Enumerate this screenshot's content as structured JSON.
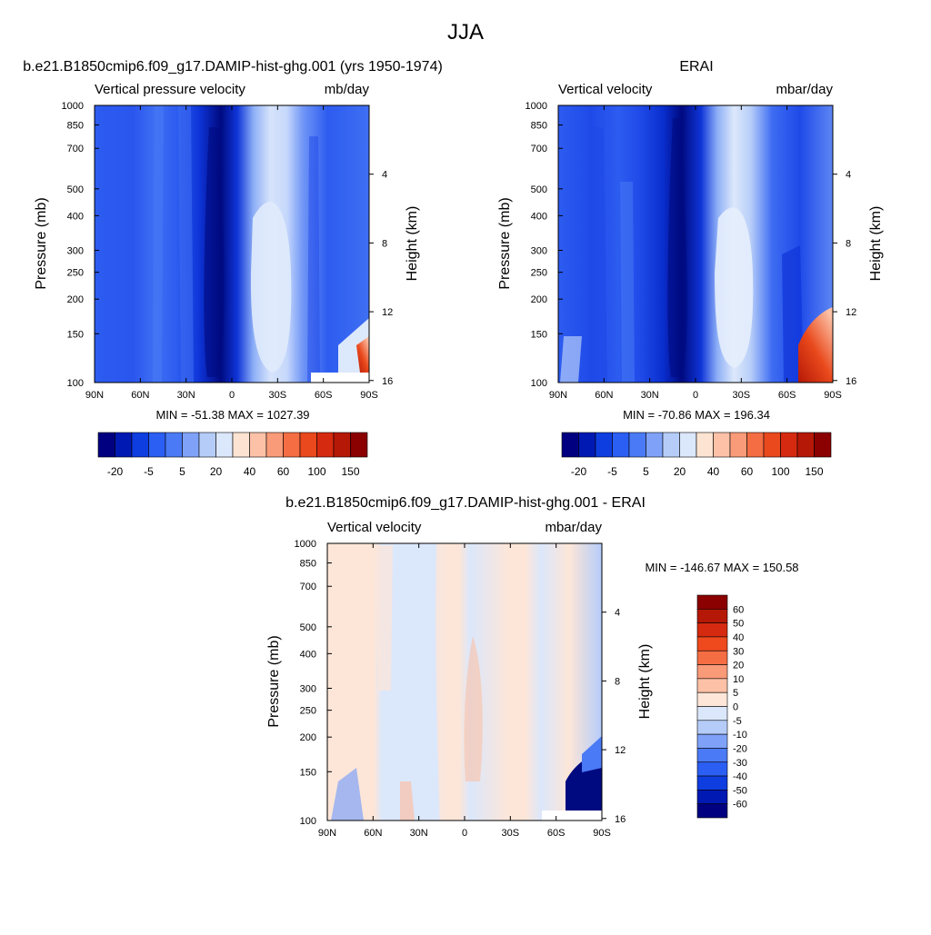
{
  "figure": {
    "title": "JJA"
  },
  "chart_data": [
    {
      "type": "heatmap",
      "title": "b.e21.B1850cmip6.f09_g17.DAMIP-hist-ghg.001 (yrs 1950-1974)",
      "left_label": "Vertical pressure velocity",
      "right_label": "mb/day",
      "ylabel": "Pressure (mb)",
      "ylabel_right": "Height (km)",
      "x_ticks": [
        "90N",
        "60N",
        "30N",
        "0",
        "30S",
        "60S",
        "90S"
      ],
      "y_ticks": [
        "100",
        "150",
        "200",
        "250",
        "300",
        "400",
        "500",
        "700",
        "850",
        "1000"
      ],
      "y_ticks_right": [
        "16",
        "12",
        "8",
        "4"
      ],
      "ylim": [
        1000,
        100
      ],
      "min_max_text": "MIN = -51.38  MAX = 1027.39",
      "min": -51.38,
      "max": 1027.39,
      "colorbar": {
        "orientation": "horizontal",
        "labels": [
          "-20",
          "-5",
          "5",
          "20",
          "40",
          "60",
          "100",
          "150"
        ],
        "colors": [
          "#000080",
          "#0019b3",
          "#0f3ee0",
          "#2b5ef2",
          "#4a7af5",
          "#7fa2f8",
          "#b5ccf9",
          "#dbe7fb",
          "#fde3d2",
          "#fcc1a6",
          "#f99a78",
          "#f46d43",
          "#e9491c",
          "#d52a10",
          "#b51806",
          "#8b0000"
        ]
      }
    },
    {
      "type": "heatmap",
      "title": "ERAI",
      "left_label": "Vertical velocity",
      "right_label": "mbar/day",
      "ylabel": "Pressure (mb)",
      "ylabel_right": "Height (km)",
      "x_ticks": [
        "90N",
        "60N",
        "30N",
        "0",
        "30S",
        "60S",
        "90S"
      ],
      "y_ticks": [
        "100",
        "150",
        "200",
        "250",
        "300",
        "400",
        "500",
        "700",
        "850",
        "1000"
      ],
      "y_ticks_right": [
        "16",
        "12",
        "8",
        "4"
      ],
      "ylim": [
        1000,
        100
      ],
      "min_max_text": "MIN = -70.86  MAX = 196.34",
      "min": -70.86,
      "max": 196.34,
      "colorbar": {
        "orientation": "horizontal",
        "labels": [
          "-20",
          "-5",
          "5",
          "20",
          "40",
          "60",
          "100",
          "150"
        ],
        "colors": [
          "#000080",
          "#0019b3",
          "#0f3ee0",
          "#2b5ef2",
          "#4a7af5",
          "#7fa2f8",
          "#b5ccf9",
          "#dbe7fb",
          "#fde3d2",
          "#fcc1a6",
          "#f99a78",
          "#f46d43",
          "#e9491c",
          "#d52a10",
          "#b51806",
          "#8b0000"
        ]
      }
    },
    {
      "type": "heatmap",
      "title": "b.e21.B1850cmip6.f09_g17.DAMIP-hist-ghg.001 - ERAI",
      "left_label": "Vertical velocity",
      "right_label": "mbar/day",
      "ylabel": "Pressure (mb)",
      "ylabel_right": "Height (km)",
      "x_ticks": [
        "90N",
        "60N",
        "30N",
        "0",
        "30S",
        "60S",
        "90S"
      ],
      "y_ticks": [
        "100",
        "150",
        "200",
        "250",
        "300",
        "400",
        "500",
        "700",
        "850",
        "1000"
      ],
      "y_ticks_right": [
        "16",
        "12",
        "8",
        "4"
      ],
      "ylim": [
        1000,
        100
      ],
      "min_max_text": "MIN = -146.67  MAX = 150.58",
      "min": -146.67,
      "max": 150.58,
      "colorbar": {
        "orientation": "vertical",
        "labels": [
          "60",
          "50",
          "40",
          "30",
          "20",
          "10",
          "5",
          "0",
          "-5",
          "-10",
          "-20",
          "-30",
          "-40",
          "-50",
          "-60"
        ],
        "colors": [
          "#8b0000",
          "#b51806",
          "#d52a10",
          "#ee4a1d",
          "#f46d43",
          "#f99a78",
          "#fcc1a6",
          "#fde6d8",
          "#dbe7fb",
          "#b5ccf9",
          "#7fa2f8",
          "#4a7af5",
          "#2b5ef2",
          "#0f3ee0",
          "#0019b3",
          "#000080"
        ]
      }
    }
  ]
}
